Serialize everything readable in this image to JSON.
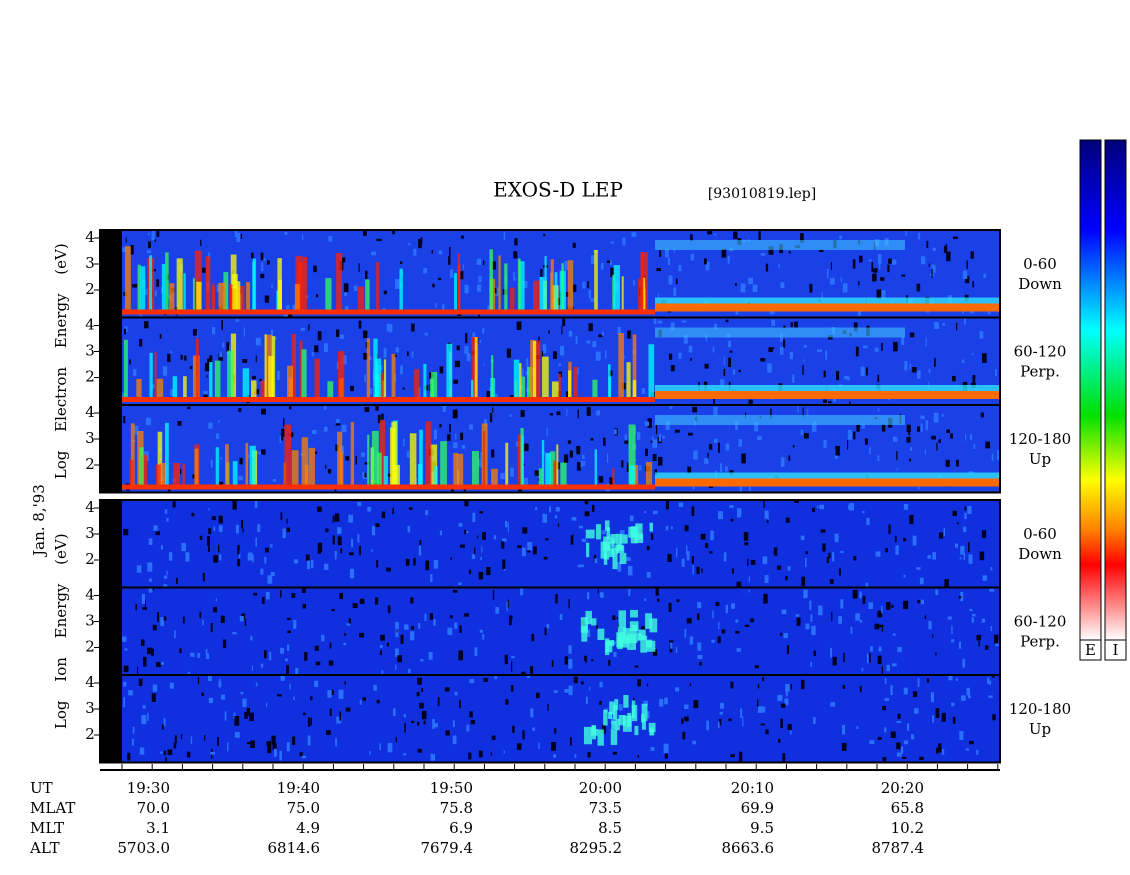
{
  "header": {
    "title": "EXOS-D LEP",
    "file": "[93010819.lep]"
  },
  "date": "Jan. 8,'93",
  "energy_ticks": [
    4,
    3,
    2
  ],
  "groups": [
    {
      "axis_label": "Log Electron Energy (eV)",
      "panels": [
        {
          "angle": "0-60",
          "direction": "Down"
        },
        {
          "angle": "60-120",
          "direction": "Perp."
        },
        {
          "angle": "120-180",
          "direction": "Up"
        }
      ]
    },
    {
      "axis_label": "Log Ion Energy (eV)",
      "panels": [
        {
          "angle": "0-60",
          "direction": "Down"
        },
        {
          "angle": "60-120",
          "direction": "Perp."
        },
        {
          "angle": "120-180",
          "direction": "Up"
        }
      ]
    }
  ],
  "orbit_table": {
    "rows": [
      {
        "label": "UT",
        "values": [
          "19:30",
          "19:40",
          "19:50",
          "20:00",
          "20:10",
          "20:20"
        ]
      },
      {
        "label": "MLAT",
        "values": [
          "70.0",
          "75.0",
          "75.8",
          "73.5",
          "69.9",
          "65.8"
        ]
      },
      {
        "label": "MLT",
        "values": [
          "3.1",
          "4.9",
          "6.9",
          "8.5",
          "9.5",
          "10.2"
        ]
      },
      {
        "label": "ALT",
        "values": [
          "5703.0",
          "6814.6",
          "7679.4",
          "8295.2",
          "8663.6",
          "8787.4"
        ]
      }
    ]
  },
  "colorbars": [
    "E",
    "I"
  ]
}
